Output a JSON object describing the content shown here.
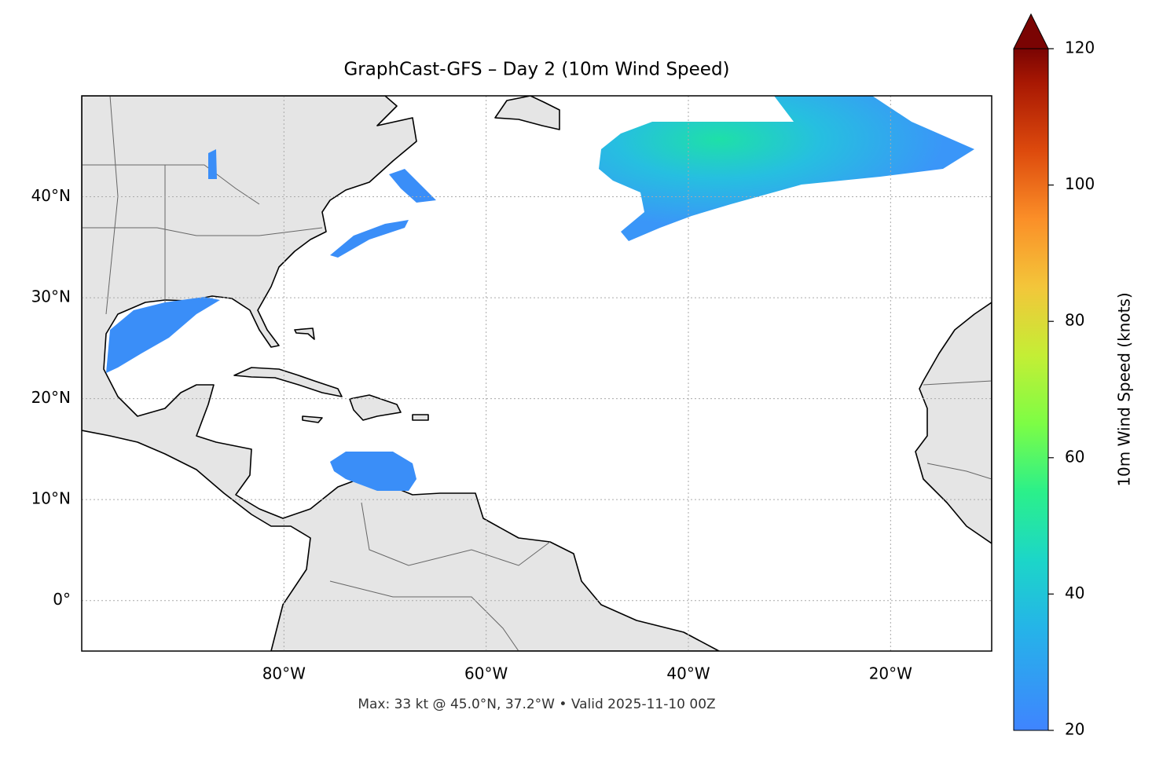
{
  "chart_data": {
    "type": "map",
    "title": "GraphCast-GFS – Day 2 (10m Wind Speed)",
    "annotation": "Max: 33 kt @ 45.0°N, 37.2°W • Valid 2025-11-10 00Z",
    "xlim": [
      -100,
      -10
    ],
    "ylim": [
      -5,
      50
    ],
    "xticks": [
      {
        "value": -80,
        "label": "80°W"
      },
      {
        "value": -60,
        "label": "60°W"
      },
      {
        "value": -40,
        "label": "40°W"
      },
      {
        "value": -20,
        "label": "20°W"
      }
    ],
    "yticks": [
      {
        "value": 0,
        "label": "0°"
      },
      {
        "value": 10,
        "label": "10°N"
      },
      {
        "value": 20,
        "label": "20°N"
      },
      {
        "value": 30,
        "label": "30°N"
      },
      {
        "value": 40,
        "label": "40°N"
      }
    ],
    "grid": true,
    "colorbar": {
      "label": "10m Wind Speed (knots)",
      "lim": [
        20,
        120
      ],
      "ticks": [
        20,
        40,
        60,
        80,
        100,
        120
      ]
    }
  }
}
